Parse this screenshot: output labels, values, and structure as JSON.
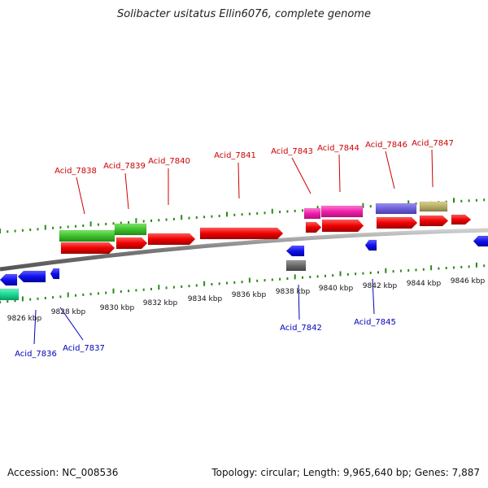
{
  "title": "Solibacter usitatus Ellin6076, complete genome",
  "footer": {
    "accession": "Accession: NC_008536",
    "topology": "Topology: circular; Length: 9,965,640 bp; Genes: 7,887"
  },
  "colors": {
    "plus_label": "#cc0000",
    "minus_label": "#0000bb",
    "tick": "#2a8a12",
    "backbone": "#8a8a8a"
  },
  "scale_labels": [
    "9826 kbp",
    "9828 kbp",
    "9830 kbp",
    "9832 kbp",
    "9834 kbp",
    "9836 kbp",
    "9838 kbp",
    "9840 kbp",
    "9842 kbp",
    "9844 kbp",
    "9846 kbp"
  ],
  "gene_labels": [
    {
      "text": "Acid_7836",
      "strand": "minus"
    },
    {
      "text": "Acid_7837",
      "strand": "minus"
    },
    {
      "text": "Acid_7838",
      "strand": "plus"
    },
    {
      "text": "Acid_7839",
      "strand": "plus"
    },
    {
      "text": "Acid_7840",
      "strand": "plus"
    },
    {
      "text": "Acid_7841",
      "strand": "plus"
    },
    {
      "text": "Acid_7842",
      "strand": "minus"
    },
    {
      "text": "Acid_7843",
      "strand": "plus"
    },
    {
      "text": "Acid_7844",
      "strand": "plus"
    },
    {
      "text": "Acid_7845",
      "strand": "minus"
    },
    {
      "text": "Acid_7846",
      "strand": "plus"
    },
    {
      "text": "Acid_7847",
      "strand": "plus"
    }
  ]
}
